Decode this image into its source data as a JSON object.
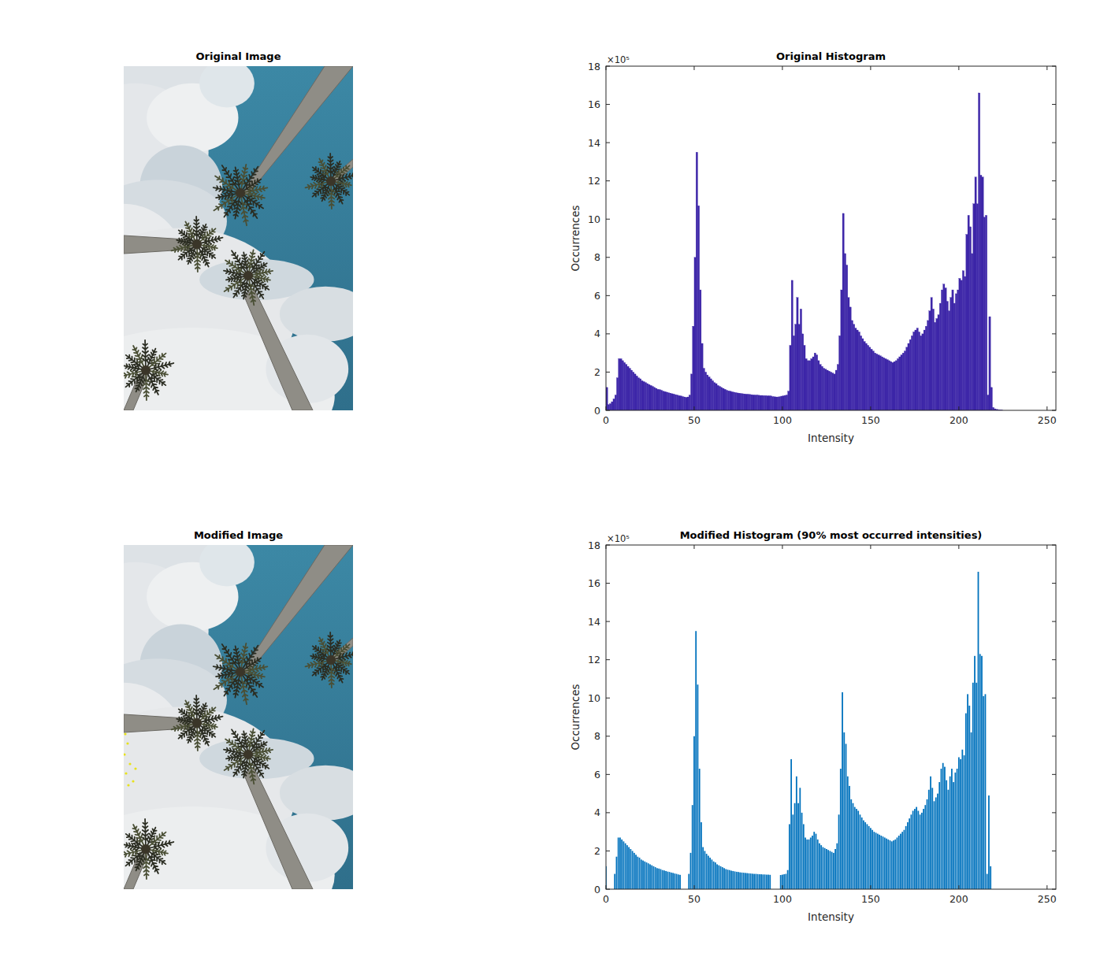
{
  "images": [
    {
      "title": "Original Image"
    },
    {
      "title": "Modified Image"
    }
  ],
  "chart_data": [
    {
      "type": "histogram",
      "title": "Original Histogram",
      "xlabel": "Intensity",
      "ylabel": "Occurrences",
      "annotations": [
        "×10⁵"
      ],
      "color": "#3d26a8",
      "grid": false,
      "xlim": [
        0,
        255
      ],
      "ylim": [
        0,
        18
      ],
      "xticks": [
        0,
        50,
        100,
        150,
        200,
        250
      ],
      "yticks": [
        0,
        2,
        4,
        6,
        8,
        10,
        12,
        14,
        16,
        18
      ],
      "bins": [
        0,
        1,
        2,
        3,
        4,
        5,
        6,
        7,
        8,
        9,
        10,
        11,
        12,
        13,
        14,
        15,
        16,
        17,
        18,
        19,
        20,
        21,
        22,
        23,
        24,
        25,
        26,
        27,
        28,
        29,
        30,
        31,
        32,
        33,
        34,
        35,
        36,
        37,
        38,
        39,
        40,
        41,
        42,
        43,
        44,
        45,
        46,
        47,
        48,
        49,
        50,
        51,
        52,
        53,
        54,
        55,
        56,
        57,
        58,
        59,
        60,
        61,
        62,
        63,
        64,
        65,
        66,
        67,
        68,
        69,
        70,
        71,
        72,
        73,
        74,
        75,
        76,
        77,
        78,
        79,
        80,
        81,
        82,
        83,
        84,
        85,
        86,
        87,
        88,
        89,
        90,
        91,
        92,
        93,
        94,
        95,
        96,
        97,
        98,
        99,
        100,
        101,
        102,
        103,
        104,
        105,
        106,
        107,
        108,
        109,
        110,
        111,
        112,
        113,
        114,
        115,
        116,
        117,
        118,
        119,
        120,
        121,
        122,
        123,
        124,
        125,
        126,
        127,
        128,
        129,
        130,
        131,
        132,
        133,
        134,
        135,
        136,
        137,
        138,
        139,
        140,
        141,
        142,
        143,
        144,
        145,
        146,
        147,
        148,
        149,
        150,
        151,
        152,
        153,
        154,
        155,
        156,
        157,
        158,
        159,
        160,
        161,
        162,
        163,
        164,
        165,
        166,
        167,
        168,
        169,
        170,
        171,
        172,
        173,
        174,
        175,
        176,
        177,
        178,
        179,
        180,
        181,
        182,
        183,
        184,
        185,
        186,
        187,
        188,
        189,
        190,
        191,
        192,
        193,
        194,
        195,
        196,
        197,
        198,
        199,
        200,
        201,
        202,
        203,
        204,
        205,
        206,
        207,
        208,
        209,
        210,
        211,
        212,
        213,
        214,
        215,
        216,
        217,
        218,
        219,
        220,
        221,
        222,
        223,
        224,
        225,
        226,
        227,
        228,
        229,
        230,
        231,
        232,
        233,
        234,
        235,
        236,
        237,
        238,
        239,
        240,
        241,
        242,
        243,
        244,
        245,
        246,
        247,
        248,
        249,
        250,
        251,
        252,
        253,
        254,
        255,
        256
      ],
      "values": [
        1.2,
        0.3,
        0.35,
        0.45,
        0.6,
        0.8,
        1.7,
        2.7,
        2.7,
        2.6,
        2.5,
        2.4,
        2.3,
        2.2,
        2.1,
        2.0,
        1.9,
        1.8,
        1.7,
        1.65,
        1.55,
        1.5,
        1.45,
        1.4,
        1.35,
        1.3,
        1.25,
        1.2,
        1.15,
        1.1,
        1.08,
        1.05,
        1.0,
        0.98,
        0.95,
        0.92,
        0.9,
        0.87,
        0.85,
        0.82,
        0.8,
        0.77,
        0.75,
        0.72,
        0.7,
        0.68,
        0.7,
        0.8,
        1.9,
        4.4,
        8.0,
        13.5,
        10.7,
        6.3,
        3.5,
        2.2,
        2.0,
        1.85,
        1.75,
        1.65,
        1.55,
        1.45,
        1.4,
        1.3,
        1.25,
        1.2,
        1.15,
        1.1,
        1.05,
        1.02,
        1.0,
        0.97,
        0.95,
        0.93,
        0.91,
        0.9,
        0.88,
        0.87,
        0.86,
        0.85,
        0.84,
        0.83,
        0.82,
        0.81,
        0.8,
        0.8,
        0.79,
        0.78,
        0.78,
        0.77,
        0.77,
        0.76,
        0.76,
        0.75,
        0.72,
        0.71,
        0.7,
        0.7,
        0.71,
        0.74,
        0.76,
        0.78,
        0.8,
        1.0,
        3.4,
        6.8,
        3.9,
        4.5,
        5.9,
        4.5,
        5.3,
        4.0,
        3.4,
        2.7,
        2.6,
        2.6,
        2.7,
        2.8,
        3.0,
        2.9,
        2.6,
        2.4,
        2.3,
        2.2,
        2.15,
        2.1,
        2.05,
        2.0,
        1.95,
        1.9,
        2.1,
        2.4,
        3.9,
        6.3,
        10.3,
        8.2,
        7.6,
        5.9,
        5.4,
        4.7,
        4.5,
        4.3,
        4.2,
        4.1,
        3.9,
        3.75,
        3.6,
        3.5,
        3.4,
        3.3,
        3.2,
        3.1,
        3.0,
        2.95,
        2.9,
        2.85,
        2.8,
        2.75,
        2.7,
        2.65,
        2.6,
        2.55,
        2.5,
        2.55,
        2.6,
        2.7,
        2.8,
        2.9,
        3.0,
        3.1,
        3.3,
        3.5,
        3.7,
        3.9,
        4.1,
        4.2,
        4.3,
        4.1,
        3.9,
        4.0,
        4.2,
        4.4,
        4.7,
        5.2,
        5.9,
        5.3,
        4.6,
        4.8,
        5.0,
        5.6,
        6.3,
        6.6,
        6.4,
        5.7,
        5.2,
        5.9,
        6.3,
        5.6,
        6.1,
        6.3,
        6.9,
        6.8,
        7.3,
        7.0,
        9.2,
        10.2,
        9.6,
        8.2,
        10.8,
        12.2,
        10.8,
        16.6,
        12.3,
        12.2,
        10.1,
        10.2,
        0.8,
        4.9,
        1.2,
        0.15,
        0.08,
        0.05,
        0.03,
        0.02,
        0.01,
        0,
        0,
        0,
        0,
        0,
        0,
        0,
        0,
        0,
        0,
        0,
        0,
        0,
        0,
        0,
        0,
        0,
        0,
        0,
        0,
        0,
        0,
        0,
        0,
        0,
        0,
        0,
        0,
        0,
        0,
        0
      ]
    },
    {
      "type": "bar",
      "title": "Modified Histogram (90% most occurred intensities)",
      "xlabel": "Intensity",
      "ylabel": "Occurrences",
      "annotations": [
        "×10⁵"
      ],
      "color": "#0072bd",
      "grid": false,
      "xlim": [
        0,
        255
      ],
      "ylim": [
        0,
        18
      ],
      "xticks": [
        0,
        50,
        100,
        150,
        200,
        250
      ],
      "yticks": [
        0,
        2,
        4,
        6,
        8,
        10,
        12,
        14,
        16,
        18
      ],
      "x": [
        0,
        1,
        2,
        3,
        4,
        5,
        6,
        7,
        8,
        9,
        10,
        11,
        12,
        13,
        14,
        15,
        16,
        17,
        18,
        19,
        20,
        21,
        22,
        23,
        24,
        25,
        26,
        27,
        28,
        29,
        30,
        31,
        32,
        33,
        34,
        35,
        36,
        37,
        38,
        39,
        40,
        41,
        42,
        43,
        44,
        45,
        46,
        47,
        48,
        49,
        50,
        51,
        52,
        53,
        54,
        55,
        56,
        57,
        58,
        59,
        60,
        61,
        62,
        63,
        64,
        65,
        66,
        67,
        68,
        69,
        70,
        71,
        72,
        73,
        74,
        75,
        76,
        77,
        78,
        79,
        80,
        81,
        82,
        83,
        84,
        85,
        86,
        87,
        88,
        89,
        90,
        91,
        92,
        93,
        94,
        95,
        96,
        97,
        98,
        99,
        100,
        101,
        102,
        103,
        104,
        105,
        106,
        107,
        108,
        109,
        110,
        111,
        112,
        113,
        114,
        115,
        116,
        117,
        118,
        119,
        120,
        121,
        122,
        123,
        124,
        125,
        126,
        127,
        128,
        129,
        130,
        131,
        132,
        133,
        134,
        135,
        136,
        137,
        138,
        139,
        140,
        141,
        142,
        143,
        144,
        145,
        146,
        147,
        148,
        149,
        150,
        151,
        152,
        153,
        154,
        155,
        156,
        157,
        158,
        159,
        160,
        161,
        162,
        163,
        164,
        165,
        166,
        167,
        168,
        169,
        170,
        171,
        172,
        173,
        174,
        175,
        176,
        177,
        178,
        179,
        180,
        181,
        182,
        183,
        184,
        185,
        186,
        187,
        188,
        189,
        190,
        191,
        192,
        193,
        194,
        195,
        196,
        197,
        198,
        199,
        200,
        201,
        202,
        203,
        204,
        205,
        206,
        207,
        208,
        209,
        210,
        211,
        212,
        213,
        214,
        215,
        216,
        217,
        218,
        219,
        220,
        221,
        222,
        223,
        224,
        225,
        226,
        227,
        228,
        229,
        230,
        231,
        232,
        233,
        234,
        235,
        236,
        237,
        238,
        239,
        240,
        241,
        242,
        243,
        244,
        245,
        246,
        247,
        248,
        249,
        250,
        251,
        252,
        253,
        254,
        255
      ],
      "values": [
        1.2,
        0,
        0,
        0,
        0,
        0.8,
        1.7,
        2.7,
        2.7,
        2.6,
        2.5,
        2.4,
        2.3,
        2.2,
        2.1,
        2.0,
        1.9,
        1.8,
        1.7,
        1.65,
        1.55,
        1.5,
        1.45,
        1.4,
        1.35,
        1.3,
        1.25,
        1.2,
        1.15,
        1.1,
        1.08,
        1.05,
        1.0,
        0.98,
        0.95,
        0.92,
        0.9,
        0.87,
        0.85,
        0.82,
        0.8,
        0.77,
        0.75,
        0,
        0,
        0,
        0,
        0.8,
        1.9,
        4.4,
        8.0,
        13.5,
        10.7,
        6.3,
        3.5,
        2.2,
        2.0,
        1.85,
        1.75,
        1.65,
        1.55,
        1.45,
        1.4,
        1.3,
        1.25,
        1.2,
        1.15,
        1.1,
        1.05,
        1.02,
        1.0,
        0.97,
        0.95,
        0.93,
        0.91,
        0.9,
        0.88,
        0.87,
        0.86,
        0.85,
        0.84,
        0.83,
        0.82,
        0.81,
        0.8,
        0.8,
        0.79,
        0.78,
        0.78,
        0.77,
        0.77,
        0.76,
        0.76,
        0.75,
        0,
        0,
        0,
        0,
        0,
        0.74,
        0.76,
        0.78,
        0.8,
        1.0,
        3.4,
        6.8,
        3.9,
        4.5,
        5.9,
        4.5,
        5.3,
        4.0,
        3.4,
        2.7,
        2.6,
        2.6,
        2.7,
        2.8,
        3.0,
        2.9,
        2.6,
        2.4,
        2.3,
        2.2,
        2.15,
        2.1,
        2.05,
        2.0,
        1.95,
        1.9,
        2.1,
        2.4,
        3.9,
        6.3,
        10.3,
        8.2,
        7.6,
        5.9,
        5.4,
        4.7,
        4.5,
        4.3,
        4.2,
        4.1,
        3.9,
        3.75,
        3.6,
        3.5,
        3.4,
        3.3,
        3.2,
        3.1,
        3.0,
        2.95,
        2.9,
        2.85,
        2.8,
        2.75,
        2.7,
        2.65,
        2.6,
        2.55,
        2.5,
        2.55,
        2.6,
        2.7,
        2.8,
        2.9,
        3.0,
        3.1,
        3.3,
        3.5,
        3.7,
        3.9,
        4.1,
        4.2,
        4.3,
        4.1,
        3.9,
        4.0,
        4.2,
        4.4,
        4.7,
        5.2,
        5.9,
        5.3,
        4.6,
        4.8,
        5.0,
        5.6,
        6.3,
        6.6,
        6.4,
        5.7,
        5.2,
        5.9,
        6.3,
        5.6,
        6.1,
        6.3,
        6.9,
        6.8,
        7.3,
        7.0,
        9.2,
        10.2,
        9.6,
        8.2,
        10.8,
        12.2,
        10.8,
        16.6,
        12.3,
        12.2,
        10.1,
        10.2,
        0.8,
        4.9,
        1.2,
        0,
        0,
        0,
        0,
        0,
        0,
        0,
        0,
        0,
        0,
        0,
        0,
        0,
        0,
        0,
        0,
        0,
        0,
        0,
        0,
        0,
        0,
        0,
        0,
        0,
        0,
        0,
        0,
        0,
        0,
        0,
        0,
        0,
        0,
        0,
        0,
        0
      ]
    }
  ]
}
